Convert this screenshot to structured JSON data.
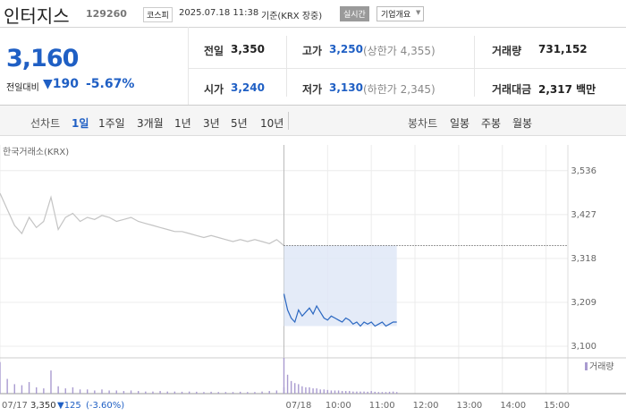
{
  "header": {
    "name": "인터지스",
    "code": "129260",
    "market": "코스피",
    "datetime": "2025.07.18 11:38",
    "basis": "기준(KRX 장중)",
    "badge": "실시간",
    "button": "기업개요"
  },
  "quote": {
    "price": "3,160",
    "change_label": "전일대비",
    "change": "▼190",
    "rate": "-5.67%"
  },
  "stats": [
    [
      {
        "label": "전일",
        "value": "3,350"
      },
      {
        "label": "고가",
        "value": "3,250",
        "extra": "(상한가 4,355)"
      },
      {
        "label": "거래량",
        "value": "731,152"
      }
    ],
    [
      {
        "label": "시가",
        "value": "3,240"
      },
      {
        "label": "저가",
        "value": "3,130",
        "extra": "(하한가 2,345)"
      },
      {
        "label": "거래대금",
        "value": "2,317 백만"
      }
    ]
  ],
  "tabs": {
    "line_label": "선차트",
    "line_items": [
      "1일",
      "1주일",
      "3개월",
      "1년",
      "3년",
      "5년",
      "10년"
    ],
    "candle_label": "봉차트",
    "candle_items": [
      "일봉",
      "주봉",
      "월봉"
    ]
  },
  "chart_data": {
    "type": "line",
    "source": "한국거래소(KRX)",
    "volume_legend": "거래량",
    "volume_color": "#a99bd0",
    "reference": 3350,
    "footnote": {
      "close": "3,350",
      "change": "▼125",
      "rate": "(-3.60%)"
    },
    "xlim": [
      0,
      780
    ],
    "xticks": [
      {
        "value": 0,
        "label": "07/17"
      },
      {
        "value": 390,
        "label": "07/18"
      },
      {
        "value": 450,
        "label": "10:00"
      },
      {
        "value": 510,
        "label": "11:00"
      },
      {
        "value": 570,
        "label": "12:00"
      },
      {
        "value": 630,
        "label": "13:00"
      },
      {
        "value": 690,
        "label": "14:00"
      },
      {
        "value": 750,
        "label": "15:00"
      }
    ],
    "ylim": [
      3080,
      3600
    ],
    "yticks": [
      {
        "value": 3536,
        "label": "3,536"
      },
      {
        "value": 3427,
        "label": "3,427"
      },
      {
        "value": 3318,
        "label": "3,318"
      },
      {
        "value": 3209,
        "label": "3,209"
      },
      {
        "value": 3100,
        "label": "3,100"
      }
    ],
    "grid": true,
    "series": [
      {
        "color": "#c4c4c4",
        "x": [
          0,
          10,
          20,
          30,
          40,
          50,
          60,
          70,
          80,
          90,
          100,
          110,
          120,
          130,
          140,
          150,
          160,
          170,
          180,
          190,
          200,
          210,
          220,
          230,
          240,
          250,
          260,
          270,
          280,
          290,
          300,
          310,
          320,
          330,
          340,
          350,
          360,
          370,
          380,
          390
        ],
        "values": [
          3480,
          3440,
          3400,
          3380,
          3420,
          3395,
          3410,
          3470,
          3390,
          3420,
          3430,
          3410,
          3420,
          3415,
          3425,
          3420,
          3410,
          3415,
          3420,
          3410,
          3405,
          3400,
          3395,
          3390,
          3385,
          3385,
          3380,
          3375,
          3370,
          3375,
          3370,
          3365,
          3360,
          3365,
          3360,
          3365,
          3360,
          3355,
          3365,
          3350
        ],
        "volumes": [
          30000,
          14000,
          9000,
          8000,
          11000,
          6000,
          5000,
          22000,
          7000,
          5000,
          6000,
          4000,
          4000,
          3000,
          4000,
          3000,
          3000,
          2500,
          3000,
          2500,
          2000,
          2000,
          2500,
          2000,
          2000,
          1800,
          2000,
          1800,
          1500,
          1800,
          1500,
          1500,
          1500,
          1800,
          1500,
          1500,
          2000,
          2500,
          3000,
          6000
        ]
      },
      {
        "color": "#2a67c1",
        "x": [
          390,
          395,
          400,
          405,
          410,
          415,
          420,
          425,
          430,
          435,
          440,
          445,
          450,
          455,
          460,
          465,
          470,
          475,
          480,
          485,
          490,
          495,
          500,
          505,
          510,
          515,
          520,
          525,
          530,
          535,
          540,
          545
        ],
        "values": [
          3230,
          3190,
          3170,
          3160,
          3190,
          3175,
          3185,
          3195,
          3180,
          3200,
          3185,
          3170,
          3165,
          3175,
          3170,
          3165,
          3160,
          3170,
          3165,
          3155,
          3160,
          3150,
          3160,
          3155,
          3160,
          3150,
          3155,
          3160,
          3150,
          3155,
          3160,
          3160
        ],
        "volumes": [
          34000,
          18000,
          12000,
          10000,
          9000,
          7000,
          6000,
          6000,
          5000,
          5000,
          4000,
          4000,
          3500,
          3000,
          3000,
          3000,
          2500,
          2500,
          2500,
          2000,
          2000,
          2000,
          2000,
          1800,
          2500,
          1800,
          1500,
          1500,
          1500,
          1800,
          2000,
          1500
        ]
      }
    ]
  }
}
